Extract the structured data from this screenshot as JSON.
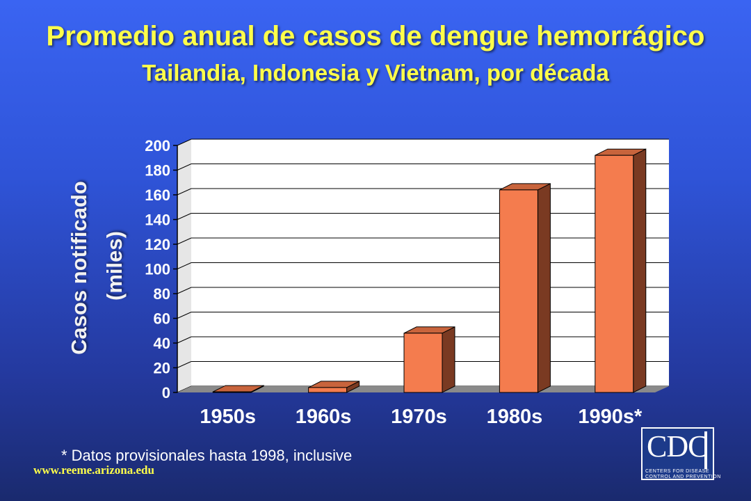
{
  "header": {
    "title": "Promedio anual de casos de dengue hemorrágico",
    "subtitle": "Tailandia, Indonesia y Vietnam, por década"
  },
  "chart_data": {
    "type": "bar",
    "categories": [
      "1950s",
      "1960s",
      "1970s",
      "1980s",
      "1990s*"
    ],
    "values": [
      0.5,
      4,
      48,
      164,
      192
    ],
    "ylabel_line1": "Casos notificado",
    "ylabel_line2": "(miles)",
    "xlabel": "",
    "ylim": [
      0,
      200
    ],
    "yticks": [
      0,
      20,
      40,
      60,
      80,
      100,
      120,
      140,
      160,
      180,
      200
    ],
    "grid": true,
    "style": "3d",
    "colors": {
      "bar_front": "#f47c4e",
      "bar_top": "#c8643c",
      "bar_side": "#7a3a22",
      "plot_back": "#ffffff",
      "floor": "#8a8a8a"
    }
  },
  "footnote": "* Datos provisionales hasta 1998, inclusive",
  "url": "www.reeme.arizona.edu",
  "logo": {
    "text": "CDC",
    "sub_line1": "CENTERS FOR DISEASE",
    "sub_line2": "CONTROL AND PREVENTION"
  }
}
